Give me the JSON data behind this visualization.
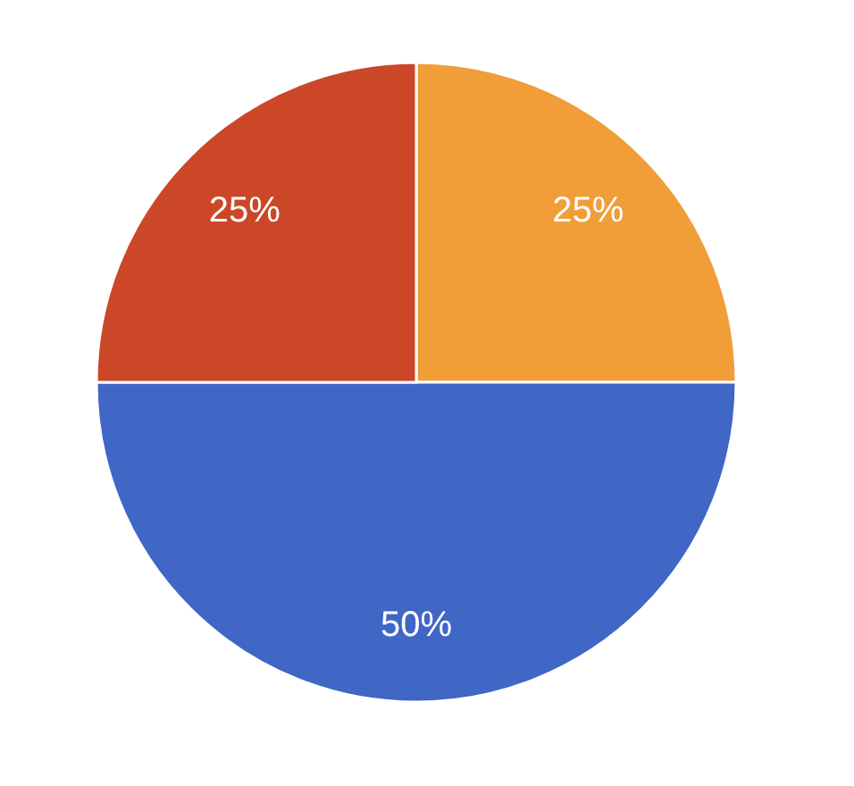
{
  "chart_data": {
    "type": "pie",
    "categories": [
      null,
      null,
      null
    ],
    "values": [
      25,
      50,
      25
    ],
    "colors": [
      "#f19e38",
      "#4066c6",
      "#cb4728"
    ],
    "value_labels": [
      "25%",
      "50%",
      "25%"
    ]
  }
}
